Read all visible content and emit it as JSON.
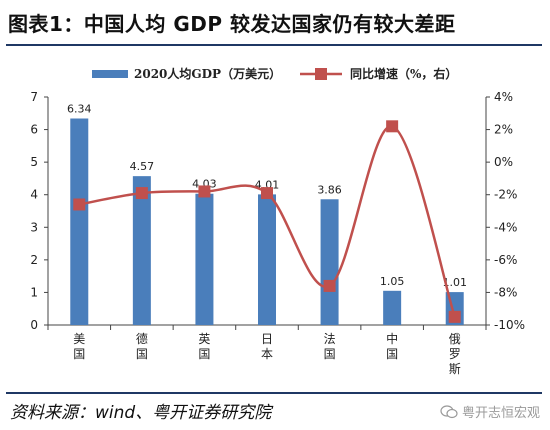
{
  "header": {
    "title": "图表1：中国人均 GDP 较发达国家仍有较大差距"
  },
  "footer": {
    "source": "资料来源：wind、粤开证券研究院",
    "watermark": "粤开志恒宏观"
  },
  "chart_data": {
    "type": "bar",
    "categories": [
      "美国",
      "德国",
      "英国",
      "日本",
      "法国",
      "中国",
      "俄罗斯"
    ],
    "series": [
      {
        "name": "2020人均GDP（万美元）",
        "type": "bar",
        "axis": "left",
        "values": [
          6.34,
          4.57,
          4.03,
          4.01,
          3.86,
          1.05,
          1.01
        ],
        "color": "#4a7ebb"
      },
      {
        "name": "同比增速（%，右）",
        "type": "line",
        "axis": "right",
        "values": [
          -2.6,
          -1.9,
          -1.8,
          -1.9,
          -7.6,
          2.2,
          -9.5
        ],
        "color": "#c0504d"
      }
    ],
    "left_axis": {
      "ylim": [
        0,
        7
      ],
      "ticks": [
        0,
        1,
        2,
        3,
        4,
        5,
        6,
        7
      ],
      "tick_labels": [
        "0",
        "1",
        "2",
        "3",
        "4",
        "5",
        "6",
        "7"
      ]
    },
    "right_axis": {
      "ylim": [
        -10,
        4
      ],
      "ticks": [
        -10,
        -8,
        -6,
        -4,
        -2,
        0,
        2,
        4
      ],
      "tick_labels": [
        "-10%",
        "-8%",
        "-6%",
        "-4%",
        "-2%",
        "0%",
        "2%",
        "4%"
      ]
    },
    "data_labels": [
      "6.34",
      "4.57",
      "4.03",
      "4.01",
      "3.86",
      "1.05",
      "1.01"
    ],
    "legend_placement": "top-center",
    "grid": false
  }
}
